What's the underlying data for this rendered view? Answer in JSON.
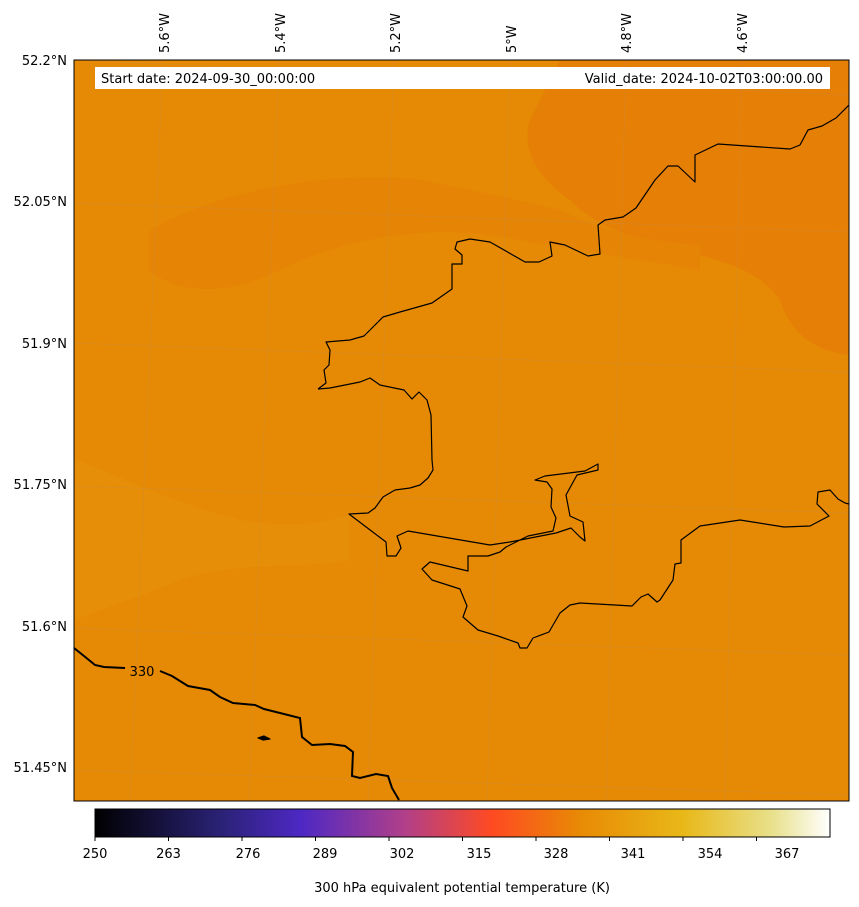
{
  "map": {
    "start_date_label": "Start date: 2024-09-30_00:00:00",
    "valid_date_label": "Valid_date: 2024-10-02T03:00:00.00",
    "field_fill_color": "#e58a05",
    "field_darker_color": "#e57e05",
    "coastline_color": "#000000",
    "gridline_color": "#cf8a3a",
    "longitude_labels": [
      "5.6°W",
      "5.4°W",
      "5.2°W",
      "5°W",
      "4.8°W",
      "4.6°W"
    ],
    "latitude_labels": [
      "52.2°N",
      "52.05°N",
      "51.9°N",
      "51.75°N",
      "51.6°N",
      "51.45°N"
    ],
    "contour_label": "330"
  },
  "colorbar": {
    "label": "300 hPa equivalent potential temperature (K)",
    "ticks": [
      "250",
      "263",
      "276",
      "289",
      "302",
      "315",
      "328",
      "341",
      "354",
      "367"
    ],
    "colors": [
      "#000000",
      "#2a2275",
      "#4d28c4",
      "#b03f8a",
      "#ff4a22",
      "#e88a05",
      "#e8b818",
      "#e8e08a",
      "#ffffff"
    ]
  }
}
